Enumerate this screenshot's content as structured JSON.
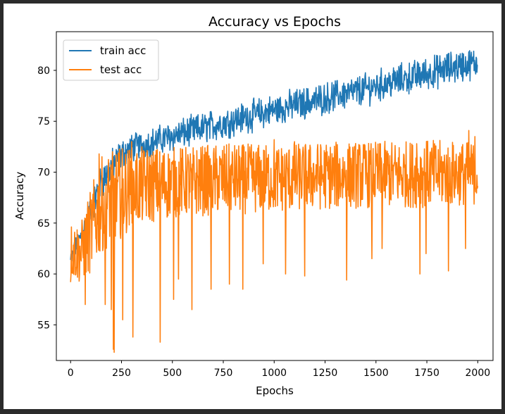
{
  "chart_data": {
    "type": "line",
    "title": "Accuracy vs Epochs",
    "xlabel": "Epochs",
    "ylabel": "Accuracy",
    "xlim": [
      -70,
      2075
    ],
    "ylim": [
      51.5,
      83.8
    ],
    "xticks": [
      0,
      250,
      500,
      750,
      1000,
      1250,
      1500,
      1750,
      2000
    ],
    "yticks": [
      55,
      60,
      65,
      70,
      75,
      80
    ],
    "grid": false,
    "legend_position": "upper left",
    "series": [
      {
        "name": "train acc",
        "color": "#1f77b4",
        "points": [
          [
            0,
            58.2
          ],
          [
            0,
            62.5
          ],
          [
            50,
            64.2
          ],
          [
            100,
            67.0
          ],
          [
            150,
            69.8
          ],
          [
            200,
            71.5
          ],
          [
            250,
            72.3
          ],
          [
            300,
            72.9
          ],
          [
            400,
            73.3
          ],
          [
            500,
            73.9
          ],
          [
            600,
            74.4
          ],
          [
            700,
            74.9
          ],
          [
            800,
            75.4
          ],
          [
            900,
            75.9
          ],
          [
            1000,
            76.4
          ],
          [
            1100,
            76.9
          ],
          [
            1200,
            77.3
          ],
          [
            1300,
            77.8
          ],
          [
            1400,
            78.2
          ],
          [
            1500,
            78.7
          ],
          [
            1600,
            79.2
          ],
          [
            1700,
            79.7
          ],
          [
            1800,
            80.2
          ],
          [
            1900,
            80.7
          ],
          [
            2000,
            81.2
          ]
        ],
        "band": [
          [
            0,
            60.0,
            62.5
          ],
          [
            50,
            62.5,
            65.0
          ],
          [
            100,
            64.5,
            68.0
          ],
          [
            150,
            67.0,
            71.0
          ],
          [
            200,
            68.5,
            72.5
          ],
          [
            250,
            70.0,
            73.5
          ],
          [
            300,
            70.8,
            74.0
          ],
          [
            400,
            71.3,
            74.6
          ],
          [
            500,
            71.8,
            75.3
          ],
          [
            600,
            72.3,
            75.8
          ],
          [
            700,
            72.8,
            76.4
          ],
          [
            800,
            73.3,
            76.9
          ],
          [
            900,
            73.8,
            77.4
          ],
          [
            1000,
            74.3,
            77.9
          ],
          [
            1100,
            74.8,
            78.4
          ],
          [
            1200,
            75.2,
            78.8
          ],
          [
            1300,
            75.7,
            79.3
          ],
          [
            1400,
            76.1,
            79.7
          ],
          [
            1500,
            76.6,
            80.3
          ],
          [
            1600,
            77.1,
            80.8
          ],
          [
            1700,
            77.6,
            81.3
          ],
          [
            1800,
            78.0,
            81.8
          ],
          [
            1900,
            78.5,
            82.3
          ],
          [
            2000,
            79.0,
            82.5
          ]
        ]
      },
      {
        "name": "test acc",
        "color": "#ff7f0e",
        "points": [
          [
            0,
            61.5
          ],
          [
            50,
            62.5
          ],
          [
            100,
            64.0
          ],
          [
            150,
            66.5
          ],
          [
            200,
            67.5
          ],
          [
            300,
            68.3
          ],
          [
            400,
            68.7
          ],
          [
            500,
            69.0
          ],
          [
            750,
            69.3
          ],
          [
            1000,
            69.5
          ],
          [
            1250,
            69.7
          ],
          [
            1500,
            69.8
          ],
          [
            1750,
            69.8
          ],
          [
            2000,
            69.9
          ]
        ],
        "band": [
          [
            0,
            59.5,
            65.2
          ],
          [
            50,
            59.0,
            65.0
          ],
          [
            100,
            60.0,
            68.5
          ],
          [
            150,
            62.0,
            71.5
          ],
          [
            200,
            63.0,
            72.0
          ],
          [
            250,
            63.5,
            72.5
          ],
          [
            300,
            64.5,
            72.5
          ],
          [
            400,
            65.0,
            72.5
          ],
          [
            500,
            65.5,
            72.5
          ],
          [
            750,
            65.8,
            72.8
          ],
          [
            1000,
            66.0,
            72.8
          ],
          [
            1250,
            66.3,
            73.0
          ],
          [
            1500,
            66.5,
            73.0
          ],
          [
            1750,
            66.5,
            73.2
          ],
          [
            2000,
            66.8,
            73.0
          ]
        ],
        "dips": [
          [
            0,
            59.2
          ],
          [
            72,
            57.0
          ],
          [
            170,
            57.0
          ],
          [
            200,
            56.5
          ],
          [
            210,
            52.6
          ],
          [
            213,
            52.3
          ],
          [
            255,
            55.5
          ],
          [
            305,
            53.8
          ],
          [
            440,
            53.3
          ],
          [
            505,
            57.5
          ],
          [
            530,
            59.5
          ],
          [
            595,
            56.5
          ],
          [
            690,
            58.5
          ],
          [
            780,
            59.0
          ],
          [
            845,
            58.5
          ],
          [
            945,
            61.0
          ],
          [
            1055,
            60.0
          ],
          [
            1150,
            59.8
          ],
          [
            1355,
            59.4
          ],
          [
            1480,
            61.5
          ],
          [
            1530,
            62.5
          ],
          [
            1715,
            60.0
          ],
          [
            1745,
            62.0
          ],
          [
            1855,
            60.3
          ],
          [
            1940,
            62.5
          ]
        ],
        "peaks": [
          [
            140,
            71.8
          ],
          [
            300,
            73.0
          ],
          [
            1000,
            73.2
          ],
          [
            1100,
            73.0
          ],
          [
            1700,
            72.8
          ],
          [
            1955,
            74.1
          ],
          [
            1985,
            73.5
          ]
        ]
      }
    ]
  }
}
